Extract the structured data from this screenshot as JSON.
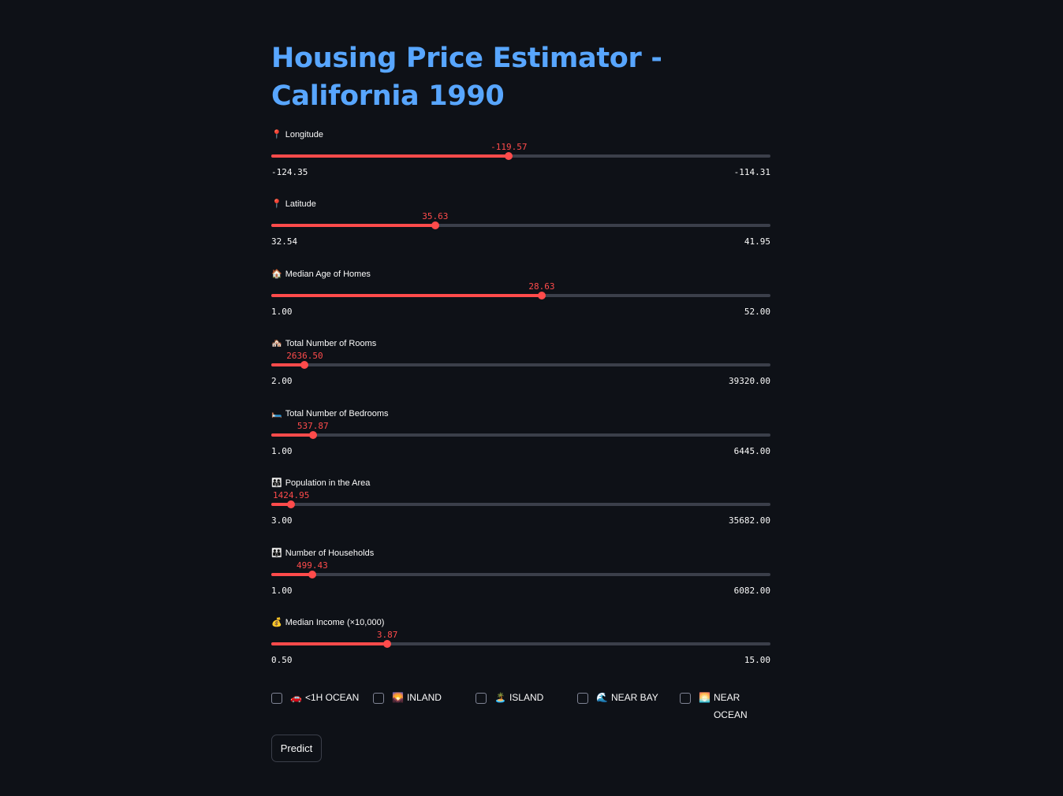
{
  "page": {
    "title": "Housing Price Estimator - California 1990"
  },
  "sliders": [
    {
      "key": "longitude",
      "icon": "📍",
      "label": "Longitude",
      "min": -124.35,
      "max": -114.31,
      "value": -119.57,
      "min_label": "-124.35",
      "max_label": "-114.31",
      "value_label": "-119.57"
    },
    {
      "key": "latitude",
      "icon": "📍",
      "label": "Latitude",
      "min": 32.54,
      "max": 41.95,
      "value": 35.63,
      "min_label": "32.54",
      "max_label": "41.95",
      "value_label": "35.63"
    },
    {
      "key": "median-age",
      "icon": "🏠",
      "label": "Median Age of Homes",
      "min": 1.0,
      "max": 52.0,
      "value": 28.63,
      "min_label": "1.00",
      "max_label": "52.00",
      "value_label": "28.63"
    },
    {
      "key": "total-rooms",
      "icon": "🏘️",
      "label": "Total Number of Rooms",
      "min": 2.0,
      "max": 39320.0,
      "value": 2636.5,
      "min_label": "2.00",
      "max_label": "39320.00",
      "value_label": "2636.50"
    },
    {
      "key": "total-bedrooms",
      "icon": "🛏️",
      "label": "Total Number of Bedrooms",
      "min": 1.0,
      "max": 6445.0,
      "value": 537.87,
      "min_label": "1.00",
      "max_label": "6445.00",
      "value_label": "537.87"
    },
    {
      "key": "population",
      "icon": "👨‍👩‍👧",
      "label": "Population in the Area",
      "min": 3.0,
      "max": 35682.0,
      "value": 1424.95,
      "min_label": "3.00",
      "max_label": "35682.00",
      "value_label": "1424.95"
    },
    {
      "key": "households",
      "icon": "👪",
      "label": "Number of Households",
      "min": 1.0,
      "max": 6082.0,
      "value": 499.43,
      "min_label": "1.00",
      "max_label": "6082.00",
      "value_label": "499.43"
    },
    {
      "key": "median-income",
      "icon": "💰",
      "label": "Median Income (×10,000)",
      "min": 0.5,
      "max": 15.0,
      "value": 3.87,
      "min_label": "0.50",
      "max_label": "15.00",
      "value_label": "3.87"
    }
  ],
  "ocean_options": [
    {
      "key": "1h-ocean",
      "icon": "🚗",
      "label": "<1H OCEAN",
      "checked": false
    },
    {
      "key": "inland",
      "icon": "🌄",
      "label": "INLAND",
      "checked": false
    },
    {
      "key": "island",
      "icon": "🏝️",
      "label": "ISLAND",
      "checked": false
    },
    {
      "key": "near-bay",
      "icon": "🌊",
      "label": "NEAR BAY",
      "checked": false
    },
    {
      "key": "near-ocean",
      "icon": "🌅",
      "label": "NEAR OCEAN",
      "checked": false
    }
  ],
  "predict_button": {
    "label": "Predict"
  },
  "colors": {
    "background": "#0e1117",
    "title": "#58a6ff",
    "accent": "#ff4b4b",
    "track": "#3b3f4a"
  }
}
